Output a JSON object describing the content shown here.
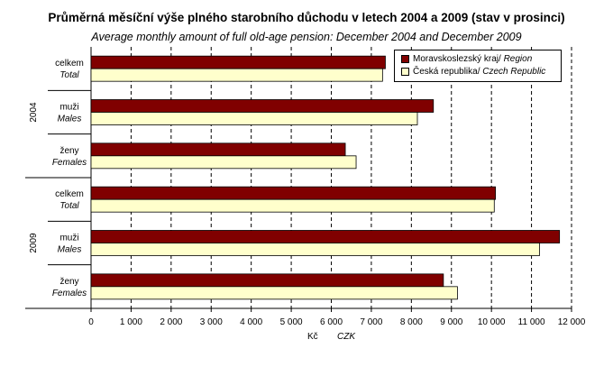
{
  "colors": {
    "region": "#800000",
    "republic": "#ffffcc"
  },
  "chart_data": {
    "type": "bar",
    "orientation": "horizontal",
    "title": "Průměrná měsíční výše plného starobního důchodu v letech 2004 a 2009 (stav v prosinci)",
    "subtitle": "Average monthly amount of full old-age pension: December 2004 and December 2009",
    "groups": [
      {
        "label": "2004",
        "categories": [
          {
            "cs": "celkem",
            "en": "Total"
          },
          {
            "cs": "muži",
            "en": "Males"
          },
          {
            "cs": "ženy",
            "en": "Females"
          }
        ]
      },
      {
        "label": "2009",
        "categories": [
          {
            "cs": "celkem",
            "en": "Total"
          },
          {
            "cs": "muži",
            "en": "Males"
          },
          {
            "cs": "ženy",
            "en": "Females"
          }
        ]
      }
    ],
    "series": [
      {
        "name_cs": "Moravskoslezský kraj/ ",
        "name_en": "Region",
        "color": "#800000",
        "values": [
          7350,
          8550,
          6350,
          10100,
          11700,
          8800
        ]
      },
      {
        "name_cs": "Česká republika/ ",
        "name_en": "Czech Republic",
        "color": "#ffffcc",
        "values": [
          7280,
          8150,
          6620,
          10070,
          11200,
          9150
        ]
      }
    ],
    "xlim": [
      0,
      12000
    ],
    "xticks": [
      "0",
      "1 000",
      "2 000",
      "3 000",
      "4 000",
      "5 000",
      "6 000",
      "7 000",
      "8 000",
      "9 000",
      "10 000",
      "11 000",
      "12 000"
    ],
    "xlabel_cs": "Kč",
    "xlabel_en": "CZK",
    "grid": "vertical dashed",
    "legend_position": "top-right"
  }
}
